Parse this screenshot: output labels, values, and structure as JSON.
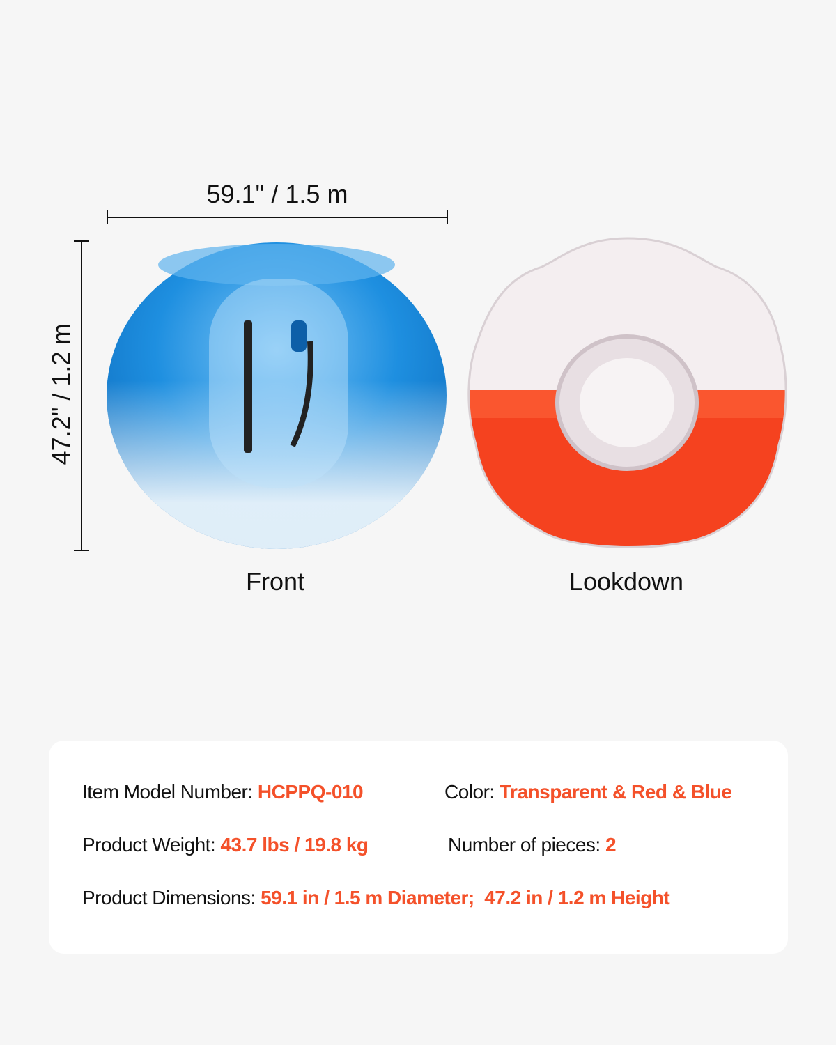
{
  "dimensions": {
    "width_label": "59.1\" / 1.5 m",
    "height_label": "47.2\" / 1.2 m"
  },
  "views": [
    {
      "label": "Front",
      "ball_color": "#1e8fe0",
      "image": "blue bubble ball front view"
    },
    {
      "label": "Lookdown",
      "ball_color": "#f5421f",
      "image": "red bubble ball top view"
    }
  ],
  "specs": {
    "model": {
      "label": "Item Model Number:",
      "value": "HCPPQ-010"
    },
    "color": {
      "label": "Color:",
      "value": "Transparent & Red & Blue"
    },
    "weight": {
      "label": "Product Weight:",
      "value": "43.7 lbs / 19.8 kg"
    },
    "pieces": {
      "label": "Number of pieces:",
      "value": "2"
    },
    "dimensions": {
      "label": "Product Dimensions:",
      "value": "59.1 in / 1.5 m Diameter;  47.2 in / 1.2 m Height"
    }
  },
  "colors": {
    "accent": "#f4512a",
    "background": "#f6f6f6",
    "card": "#ffffff"
  }
}
